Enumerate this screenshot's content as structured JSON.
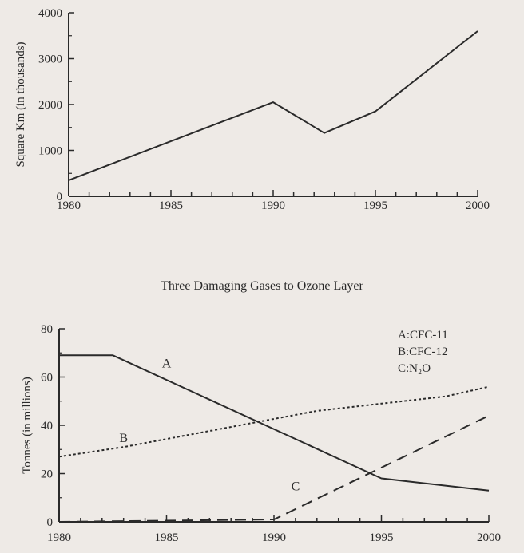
{
  "section_title": "Three Damaging Gases to Ozone Layer",
  "chart_data": [
    {
      "type": "line",
      "title": "",
      "xlabel": "",
      "ylabel": "Square Km (in thousands)",
      "xlim": [
        1980,
        2000
      ],
      "ylim": [
        0,
        4000
      ],
      "x_ticks": [
        "1980",
        "1985",
        "1990",
        "1995",
        "2000"
      ],
      "y_ticks": [
        "0",
        "1000",
        "2000",
        "3000",
        "4000"
      ],
      "grid": false,
      "series": [
        {
          "x": [
            1980,
            1990,
            1992.5,
            1995,
            2000
          ],
          "y": [
            350,
            2050,
            1380,
            1850,
            3600
          ],
          "style": "solid"
        }
      ]
    },
    {
      "type": "line",
      "title": "Three Damaging Gases to Ozone Layer",
      "xlabel": "",
      "ylabel": "Tonnes (in millions)",
      "xlim": [
        1980,
        2000
      ],
      "ylim": [
        0,
        80
      ],
      "x_ticks": [
        "1980",
        "1985",
        "1990",
        "1995",
        "2000"
      ],
      "y_ticks": [
        "0",
        "20",
        "40",
        "60",
        "80"
      ],
      "grid": false,
      "legend": {
        "position": "top-right",
        "entries": [
          "A:CFC-11",
          "B:CFC-12",
          "C:N₂O"
        ]
      },
      "series": [
        {
          "name": "A",
          "style": "solid",
          "x": [
            1980,
            1982.5,
            1995,
            2000
          ],
          "y": [
            69,
            69,
            18,
            13
          ]
        },
        {
          "name": "B",
          "style": "dotted",
          "x": [
            1980,
            1983,
            1986,
            1989,
            1992,
            1995,
            1998,
            2000
          ],
          "y": [
            27,
            31,
            36,
            41,
            46,
            49,
            52,
            56
          ]
        },
        {
          "name": "C",
          "style": "dashed",
          "x": [
            1980,
            1990,
            2000
          ],
          "y": [
            0,
            1,
            44
          ]
        }
      ]
    }
  ]
}
